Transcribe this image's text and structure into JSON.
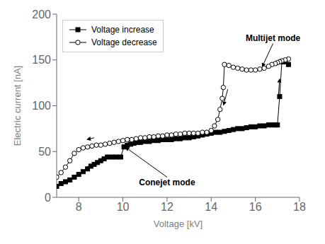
{
  "chart_data": {
    "type": "line",
    "xlabel": "Voltage [kV]",
    "ylabel": "Electric current [nA]",
    "xlim": [
      7,
      18
    ],
    "ylim": [
      0,
      200
    ],
    "xticks": [
      8,
      10,
      12,
      14,
      16,
      18
    ],
    "yticks": [
      0,
      50,
      100,
      150,
      200
    ],
    "grid": false,
    "legend": "upper left",
    "series": [
      {
        "name": "Voltage increase",
        "color": "#000000",
        "marker": "square",
        "line_style": "solid",
        "x": [
          7.0,
          7.2,
          7.4,
          7.6,
          7.8,
          8.0,
          8.2,
          8.4,
          8.55,
          8.7,
          8.85,
          9.0,
          9.15,
          9.3,
          9.5,
          9.7,
          9.9,
          10.05,
          10.2,
          10.35,
          10.5,
          10.65,
          10.8,
          11.0,
          11.2,
          11.4,
          11.6,
          11.8,
          12.0,
          12.2,
          12.4,
          12.6,
          12.8,
          13.0,
          13.2,
          13.4,
          13.6,
          13.8,
          14.0,
          14.2,
          14.4,
          14.6,
          14.8,
          15.0,
          15.2,
          15.4,
          15.6,
          15.8,
          16.0,
          16.2,
          16.4,
          16.6,
          16.75,
          16.9,
          17.0,
          17.1,
          17.2,
          17.35,
          17.5
        ],
        "values": [
          12,
          15,
          17,
          19,
          22,
          25,
          28,
          31,
          34,
          36,
          38,
          40,
          42,
          44,
          44,
          44,
          44,
          55,
          57,
          58,
          59,
          60,
          60,
          61,
          61,
          62,
          62,
          63,
          63,
          63,
          64,
          64,
          65,
          65,
          66,
          67,
          68,
          69,
          70,
          71,
          71,
          72,
          73,
          74,
          75,
          75,
          76,
          77,
          77,
          78,
          78,
          79,
          79,
          79,
          79,
          110,
          148,
          148,
          145
        ]
      },
      {
        "name": "Voltage decrease",
        "color": "#000000",
        "marker": "open_circle",
        "line_style": "solid",
        "x": [
          17.5,
          17.35,
          17.2,
          17.1,
          17.0,
          16.9,
          16.75,
          16.6,
          16.4,
          16.2,
          16.0,
          15.8,
          15.6,
          15.4,
          15.2,
          15.0,
          14.8,
          14.6,
          14.55,
          14.5,
          14.4,
          14.3,
          14.15,
          14.0,
          13.8,
          13.6,
          13.4,
          13.2,
          13.0,
          12.8,
          12.6,
          12.4,
          12.2,
          12.0,
          11.8,
          11.6,
          11.4,
          11.2,
          11.0,
          10.8,
          10.6,
          10.4,
          10.2,
          10.0,
          9.8,
          9.6,
          9.4,
          9.2,
          9.0,
          8.8,
          8.6,
          8.4,
          8.2,
          8.0,
          7.8,
          7.6,
          7.4,
          7.2,
          7.0
        ],
        "values": [
          151,
          150,
          149,
          148,
          147,
          146,
          145,
          143,
          141,
          140,
          139,
          139,
          139,
          140,
          141,
          142,
          144,
          145,
          120,
          108,
          96,
          85,
          78,
          73,
          71,
          71,
          70,
          70,
          70,
          70,
          69,
          69,
          68,
          68,
          67,
          67,
          66,
          66,
          65,
          65,
          64,
          63,
          63,
          62,
          61,
          60,
          59,
          58,
          57,
          57,
          56,
          55,
          54,
          52,
          48,
          40,
          33,
          27,
          22
        ]
      }
    ],
    "annotations": [
      {
        "text": "Conejet mode",
        "x": 12.0,
        "y": 22,
        "arrow_to": [
          10.1,
          55
        ],
        "text_position": "below"
      },
      {
        "text": "Multijet mode",
        "x": 16.8,
        "y": 168,
        "arrow_to": [
          16.3,
          142
        ],
        "text_position": "above"
      },
      {
        "x": 8.7,
        "y": 65,
        "arrow_to": [
          8.35,
          63
        ]
      },
      {
        "x": 8.35,
        "y": 33,
        "arrow_to": [
          8.7,
          36
        ]
      },
      {
        "x": 14.75,
        "y": 118,
        "arrow_to": [
          14.55,
          100
        ]
      },
      {
        "x": 17.05,
        "y": 112,
        "arrow_to": [
          17.1,
          130
        ]
      }
    ]
  }
}
